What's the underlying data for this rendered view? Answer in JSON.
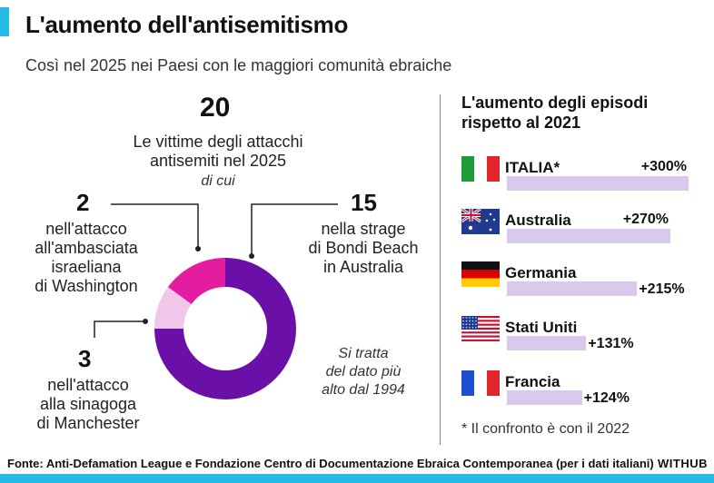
{
  "header": {
    "title": "L'aumento dell'antisemitismo",
    "subtitle": "Così nel 2025 nei Paesi con le maggiori comunità ebraiche"
  },
  "victims": {
    "total_value": "20",
    "total_label_1": "Le vittime degli attacchi",
    "total_label_2": "antisemiti nel 2025",
    "of_which": "di cui",
    "washington": {
      "value": "2",
      "lines": [
        "nell'attacco",
        "all'ambasciata",
        "israeliana",
        "di Washington"
      ]
    },
    "bondi": {
      "value": "15",
      "lines": [
        "nella strage",
        "di Bondi Beach",
        "in Australia"
      ]
    },
    "manchester": {
      "value": "3",
      "lines": [
        "nell'attacco",
        "alla sinagoga",
        "di Manchester"
      ]
    },
    "note_lines": [
      "Si tratta",
      "del dato più",
      "alto dal 1994"
    ]
  },
  "chart_data": [
    {
      "type": "pie",
      "categories": [
        "Bondi Beach",
        "Washington",
        "Manchester"
      ],
      "values": [
        15,
        2,
        3
      ],
      "colors": [
        "#6a10a8",
        "#f2c6ea",
        "#e41ca0"
      ],
      "donut": true
    },
    {
      "type": "bar",
      "title": "L'aumento degli episodi rispetto al 2021",
      "categories": [
        "ITALIA*",
        "Australia",
        "Germania",
        "Stati Uniti",
        "Francia"
      ],
      "values": [
        300,
        270,
        215,
        131,
        124
      ],
      "labels": [
        "+300%",
        "+270%",
        "+215%",
        "+131%",
        "+124%"
      ],
      "unit": "%",
      "bar_color": "#d9c9ec"
    }
  ],
  "right": {
    "heading_1": "L'aumento degli episodi",
    "heading_2": "rispetto al 2021",
    "note": "* Il confronto è con il 2022",
    "flags": [
      "italy-flag-icon",
      "australia-flag-icon",
      "germany-flag-icon",
      "usa-flag-icon",
      "france-flag-icon"
    ]
  },
  "footer": {
    "source": "Fonte: Anti-Defamation League e Fondazione Centro di Documentazione Ebraica Contemporanea (per i dati italiani)",
    "brand": "WITHUB"
  },
  "colors": {
    "accent": "#25bde8",
    "bar": "#d9c9ec",
    "purple": "#6a10a8",
    "magenta": "#e41ca0",
    "pink": "#f2c6ea"
  }
}
